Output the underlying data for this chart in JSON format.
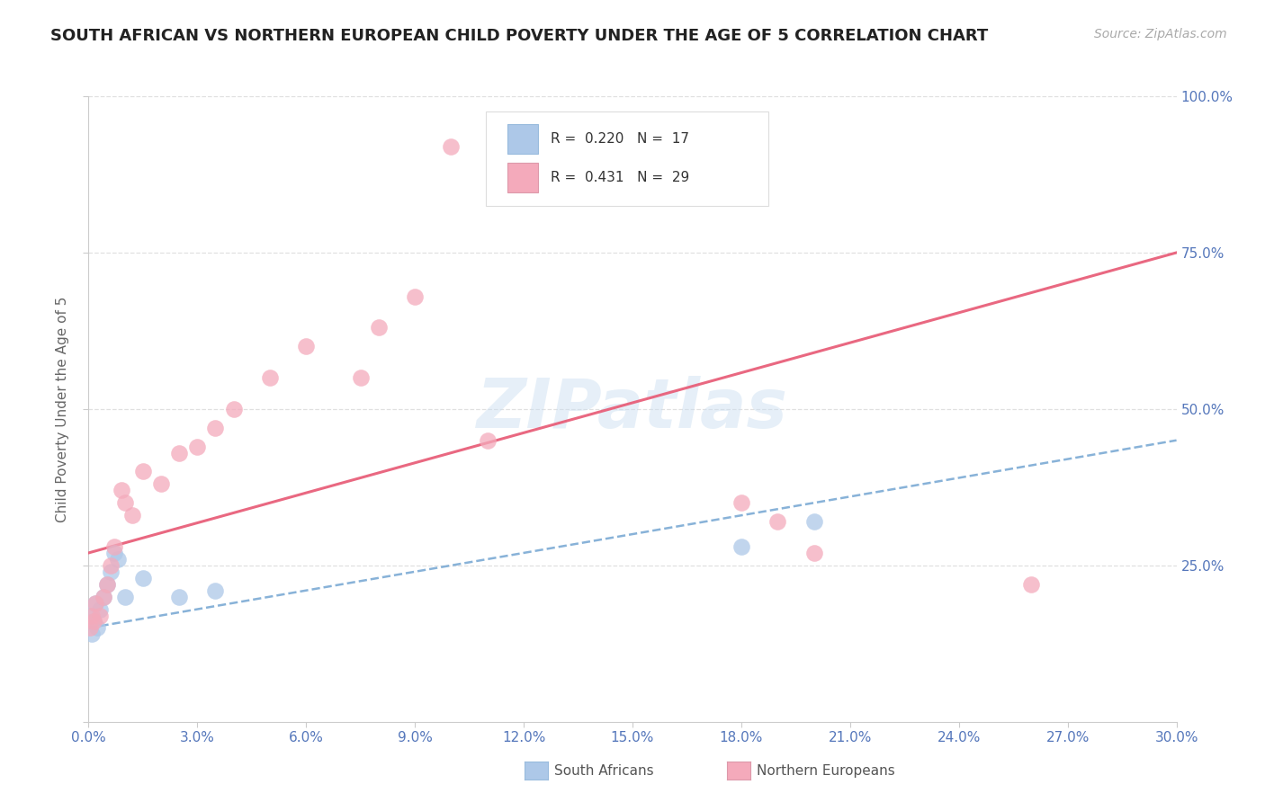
{
  "title": "SOUTH AFRICAN VS NORTHERN EUROPEAN CHILD POVERTY UNDER THE AGE OF 5 CORRELATION CHART",
  "source": "Source: ZipAtlas.com",
  "ylabel": "Child Poverty Under the Age of 5",
  "xlim": [
    0.0,
    30.0
  ],
  "ylim": [
    0.0,
    100.0
  ],
  "right_yticks": [
    25.0,
    50.0,
    75.0,
    100.0
  ],
  "watermark": "ZIPatlas",
  "sa_r": "0.220",
  "sa_n": "17",
  "ne_r": "0.431",
  "ne_n": "29",
  "south_africans_x": [
    0.05,
    0.1,
    0.15,
    0.2,
    0.25,
    0.3,
    0.4,
    0.5,
    0.6,
    0.7,
    0.8,
    1.0,
    1.5,
    2.5,
    3.5,
    18.0,
    20.0
  ],
  "south_africans_y": [
    17,
    14,
    16,
    19,
    15,
    18,
    20,
    22,
    24,
    27,
    26,
    20,
    23,
    20,
    21,
    28,
    32
  ],
  "northern_europeans_x": [
    0.05,
    0.1,
    0.15,
    0.2,
    0.3,
    0.4,
    0.5,
    0.6,
    0.7,
    0.9,
    1.0,
    1.2,
    1.5,
    2.0,
    2.5,
    3.0,
    3.5,
    4.0,
    5.0,
    6.0,
    7.5,
    8.0,
    9.0,
    10.0,
    11.0,
    18.0,
    19.0,
    20.0,
    26.0
  ],
  "northern_europeans_y": [
    15,
    17,
    16,
    19,
    17,
    20,
    22,
    25,
    28,
    37,
    35,
    33,
    40,
    38,
    43,
    44,
    47,
    50,
    55,
    60,
    55,
    63,
    68,
    92,
    45,
    35,
    32,
    27,
    22
  ],
  "sa_color": "#adc8e8",
  "ne_color": "#f4aabb",
  "sa_line_color": "#7baad4",
  "ne_line_color": "#e8607a",
  "sa_line_intercept": 15.0,
  "sa_line_slope": 1.0,
  "ne_line_intercept": 27.0,
  "ne_line_slope": 1.6,
  "axis_label_color": "#5577bb",
  "grid_color": "#e0e0e0",
  "background_color": "#ffffff",
  "title_fontsize": 13,
  "source_fontsize": 10,
  "axis_fontsize": 11,
  "ylabel_fontsize": 11
}
